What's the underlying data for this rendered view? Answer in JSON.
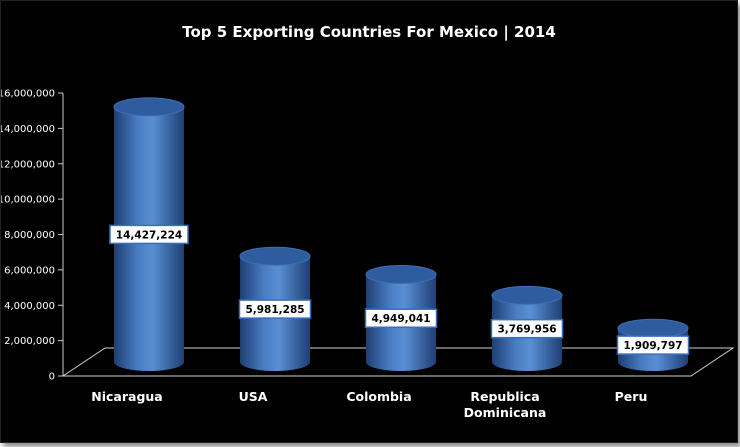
{
  "chart_data": {
    "type": "bar",
    "style": "3d-cylinder",
    "title": "Top 5 Exporting Countries  For Mexico | 2014",
    "xlabel": "",
    "ylabel": "",
    "categories": [
      "Nicaragua",
      "USA",
      "Colombia",
      "Republica Dominicana",
      "Peru"
    ],
    "values": [
      14427224,
      5981285,
      4949041,
      3769956,
      1909797
    ],
    "data_labels": [
      "14,427,224",
      "5,981,285",
      "4,949,041",
      "3,769,956",
      "1,909,797"
    ],
    "yticks": [
      0,
      2000000,
      4000000,
      6000000,
      8000000,
      10000000,
      12000000,
      14000000,
      16000000
    ],
    "ytick_labels": [
      "0",
      "2,000,000",
      "4,000,000",
      "6,000,000",
      "8,000,000",
      "10,000,000",
      "12,000,000",
      "14,000,000",
      "16,000,000"
    ],
    "ylim": [
      0,
      16000000
    ],
    "grid": false,
    "legend": "none",
    "colors": {
      "background": "#000000",
      "bar": "#4a7ec4",
      "bar_dark": "#1f3f73",
      "bar_top": "#2f5c9e",
      "text": "#ffffff",
      "label_box": "#ffffff",
      "label_border": "#3a6fb8"
    }
  }
}
